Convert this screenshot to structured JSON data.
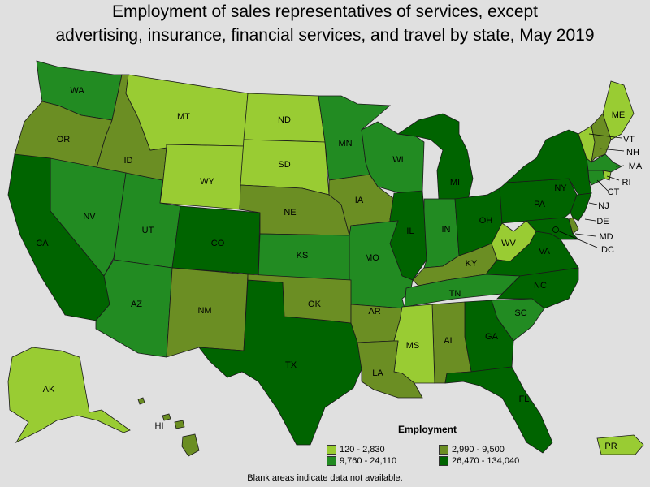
{
  "title_line1": "Employment of sales representatives of services, except",
  "title_line2": "advertising, insurance, financial services, and travel by state, May 2019",
  "legend": {
    "title": "Employment",
    "items": [
      {
        "label": "120 - 2,830",
        "color": "#99cc33"
      },
      {
        "label": "2,990 - 9,500",
        "color": "#6b8e23"
      },
      {
        "label": "9,760 - 24,110",
        "color": "#228b22"
      },
      {
        "label": "26,470 - 134,040",
        "color": "#006400"
      }
    ]
  },
  "note": "Blank areas indicate data not available.",
  "colors": {
    "c1": "#99cc33",
    "c2": "#6b8e23",
    "c3": "#228b22",
    "c4": "#006400",
    "background": "#e0e0e0"
  },
  "states": {
    "WA": "c3",
    "OR": "c2",
    "ID": "c2",
    "MT": "c1",
    "WY": "c1",
    "ND": "c1",
    "SD": "c1",
    "MN": "c3",
    "WI": "c3",
    "MI": "c4",
    "NV": "c3",
    "CA": "c4",
    "UT": "c3",
    "CO": "c4",
    "NE": "c2",
    "IA": "c2",
    "IL": "c4",
    "IN": "c3",
    "OH": "c4",
    "PA": "c4",
    "NY": "c4",
    "AZ": "c3",
    "NM": "c2",
    "KS": "c3",
    "MO": "c3",
    "KY": "c2",
    "WV": "c1",
    "VA": "c4",
    "TX": "c4",
    "OK": "c2",
    "AR": "c2",
    "TN": "c3",
    "NC": "c4",
    "SC": "c3",
    "GA": "c4",
    "AL": "c2",
    "MS": "c1",
    "LA": "c2",
    "FL": "c4",
    "ME": "c1",
    "VT": "c1",
    "NH": "c2",
    "MA": "c3",
    "RI": "c1",
    "CT": "c3",
    "NJ": "c4",
    "DE": "c2",
    "MD": "c4",
    "DC": "c4",
    "AK": "c1",
    "HI": "c2",
    "PR": "c1"
  }
}
